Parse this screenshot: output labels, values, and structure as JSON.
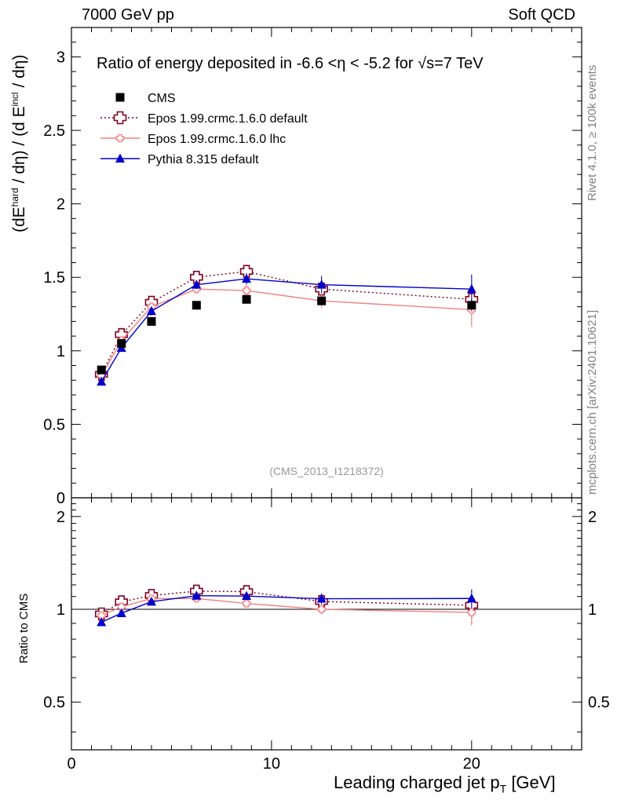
{
  "header": {
    "energy_label": "7000 GeV pp",
    "process_label": "Soft QCD"
  },
  "side": {
    "rivet_label": "Rivet 4.1.0, ≥ 100k events",
    "source_label": "mcplots.cern.ch [arXiv:2401.10621]"
  },
  "chart_data": {
    "type": "line",
    "title": "Ratio of energy deposited in -6.6 <η < -5.2 for √s=7 TeV",
    "analysis_label": "(CMS_2013_I1218372)",
    "xlabel": "Leading charged jet p",
    "xlabel_sub": "T",
    "xlabel_unit": "[GeV]",
    "ylabel": "(dE^hard / dη) / (d E^incl / dη)",
    "ratio_ylabel": "Ratio to CMS",
    "xlim": [
      0,
      25.5
    ],
    "ylim": [
      0,
      3.2
    ],
    "ratio_ylim": [
      0.35,
      2.3
    ],
    "x_ticks": [
      0,
      10,
      20
    ],
    "y_ticks": [
      0,
      0.5,
      1,
      1.5,
      2,
      2.5,
      3
    ],
    "y_tick_labels": [
      "0",
      "0.5",
      "1",
      "1.5",
      "2",
      "2.5",
      "3"
    ],
    "ratio_ticks": [
      0.5,
      1,
      2
    ],
    "ratio_tick_labels": [
      "0.5",
      "1",
      "2"
    ],
    "x": [
      1.5,
      2.5,
      4.0,
      6.25,
      8.75,
      12.5,
      20.0
    ],
    "series": [
      {
        "name": "CMS",
        "color": "#000000",
        "marker": "square",
        "values": [
          0.87,
          1.05,
          1.2,
          1.31,
          1.35,
          1.34,
          1.31
        ],
        "errors": [
          0.02,
          0.02,
          0.02,
          0.02,
          0.02,
          0.03,
          0.04
        ]
      },
      {
        "name": "Epos 1.99.crmc.1.6.0 default",
        "color": "#800020",
        "marker": "open-cross",
        "line": "dotted",
        "values": [
          0.84,
          1.11,
          1.33,
          1.5,
          1.54,
          1.42,
          1.35
        ],
        "errors": [
          0.02,
          0.02,
          0.03,
          0.03,
          0.05,
          0.08,
          0.17
        ]
      },
      {
        "name": "Epos 1.99.crmc.1.6.0 lhc",
        "color": "#f08080",
        "marker": "small-cross",
        "line": "solid",
        "values": [
          0.83,
          1.07,
          1.3,
          1.42,
          1.41,
          1.34,
          1.28
        ],
        "errors": [
          0.02,
          0.02,
          0.03,
          0.03,
          0.04,
          0.05,
          0.12
        ]
      },
      {
        "name": "Pythia 8.315 default",
        "color": "#0000cc",
        "marker": "triangle",
        "line": "solid",
        "values": [
          0.79,
          1.02,
          1.27,
          1.45,
          1.49,
          1.45,
          1.42
        ],
        "errors": [
          0.02,
          0.02,
          0.03,
          0.03,
          0.04,
          0.06,
          0.1
        ]
      }
    ]
  }
}
